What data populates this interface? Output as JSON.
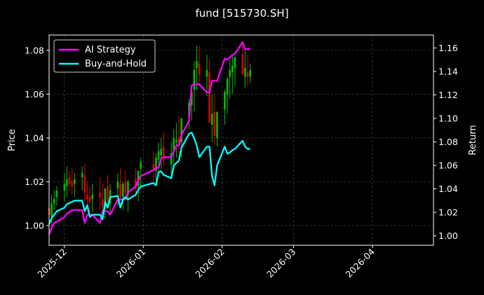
{
  "chart_data": {
    "type": "line",
    "title": "fund [515730.SH]",
    "ylabel_left": "Price",
    "ylabel_right": "Return",
    "grid": true,
    "legend_position": "top-left",
    "x_ticks": [
      "2025-12",
      "2026-01",
      "2026-02",
      "2026-03",
      "2026-04"
    ],
    "x_range": [
      "2025-11-25",
      "2026-04-25"
    ],
    "ylim_left": [
      0.991,
      1.087
    ],
    "ylim_right": [
      0.992,
      1.171
    ],
    "y_ticks_left": [
      "1.00",
      "1.02",
      "1.04",
      "1.06",
      "1.08"
    ],
    "y_ticks_right": [
      "1.00",
      "1.02",
      "1.04",
      "1.06",
      "1.08",
      "1.10",
      "1.12",
      "1.14",
      "1.16"
    ],
    "colors": {
      "ai": "#ff00ff",
      "bh": "#00ffff",
      "up": "#00c000",
      "down": "#e00000",
      "grid": "#555555",
      "bg": "#000000"
    },
    "series": [
      {
        "name": "AI Strategy",
        "axis": "right",
        "color": "#ff00ff",
        "x": [
          "2025-11-25",
          "2025-11-26",
          "2025-11-27",
          "2025-11-28",
          "2025-12-01",
          "2025-12-02",
          "2025-12-03",
          "2025-12-04",
          "2025-12-05",
          "2025-12-08",
          "2025-12-09",
          "2025-12-10",
          "2025-12-11",
          "2025-12-12",
          "2025-12-15",
          "2025-12-16",
          "2025-12-17",
          "2025-12-18",
          "2025-12-19",
          "2025-12-22",
          "2025-12-23",
          "2025-12-24",
          "2025-12-25",
          "2025-12-26",
          "2025-12-29",
          "2025-12-30",
          "2025-12-31",
          "2026-01-05",
          "2026-01-06",
          "2026-01-07",
          "2026-01-08",
          "2026-01-09",
          "2026-01-12",
          "2026-01-13",
          "2026-01-14",
          "2026-01-15",
          "2026-01-16",
          "2026-01-19",
          "2026-01-20",
          "2026-01-21",
          "2026-01-22",
          "2026-01-23",
          "2026-01-26",
          "2026-01-27",
          "2026-01-28",
          "2026-01-29",
          "2026-01-30",
          "2026-02-02",
          "2026-02-03",
          "2026-02-04",
          "2026-02-05",
          "2026-02-06",
          "2026-02-09",
          "2026-02-10",
          "2026-02-11",
          "2026-02-12"
        ],
        "values": [
          1.001,
          1.007,
          1.011,
          1.012,
          1.016,
          1.019,
          1.02,
          1.022,
          1.022,
          1.022,
          1.011,
          1.018,
          1.018,
          1.018,
          1.011,
          1.021,
          1.021,
          1.021,
          1.018,
          1.031,
          1.031,
          1.031,
          1.031,
          1.037,
          1.042,
          1.047,
          1.051,
          1.056,
          1.058,
          1.058,
          1.066,
          1.067,
          1.067,
          1.072,
          1.077,
          1.077,
          1.086,
          1.098,
          1.128,
          1.129,
          1.129,
          1.129,
          1.122,
          1.122,
          1.132,
          1.132,
          1.132,
          1.151,
          1.15,
          1.152,
          1.154,
          1.155,
          1.165,
          1.159,
          1.159,
          1.159
        ]
      },
      {
        "name": "Buy-and-Hold",
        "axis": "right",
        "color": "#00ffff",
        "x": [
          "2025-11-25",
          "2025-11-26",
          "2025-11-27",
          "2025-11-28",
          "2025-12-01",
          "2025-12-02",
          "2025-12-03",
          "2025-12-04",
          "2025-12-05",
          "2025-12-08",
          "2025-12-09",
          "2025-12-10",
          "2025-12-11",
          "2025-12-12",
          "2025-12-15",
          "2025-12-16",
          "2025-12-17",
          "2025-12-18",
          "2025-12-19",
          "2025-12-22",
          "2025-12-23",
          "2025-12-24",
          "2025-12-25",
          "2025-12-26",
          "2025-12-29",
          "2025-12-30",
          "2025-12-31",
          "2026-01-05",
          "2026-01-06",
          "2026-01-07",
          "2026-01-08",
          "2026-01-09",
          "2026-01-12",
          "2026-01-13",
          "2026-01-14",
          "2026-01-15",
          "2026-01-16",
          "2026-01-19",
          "2026-01-20",
          "2026-01-21",
          "2026-01-22",
          "2026-01-23",
          "2026-01-26",
          "2026-01-27",
          "2026-01-28",
          "2026-01-29",
          "2026-01-30",
          "2026-02-02",
          "2026-02-03",
          "2026-02-04",
          "2026-02-05",
          "2026-02-06",
          "2026-02-09",
          "2026-02-10",
          "2026-02-11",
          "2026-02-12"
        ],
        "values": [
          1.01,
          1.015,
          1.018,
          1.021,
          1.024,
          1.027,
          1.028,
          1.029,
          1.03,
          1.03,
          1.021,
          1.026,
          1.016,
          1.018,
          1.018,
          1.014,
          1.029,
          1.024,
          1.033,
          1.034,
          1.024,
          1.031,
          1.033,
          1.031,
          1.035,
          1.039,
          1.042,
          1.045,
          1.043,
          1.054,
          1.055,
          1.052,
          1.049,
          1.06,
          1.062,
          1.064,
          1.075,
          1.087,
          1.088,
          1.083,
          1.077,
          1.067,
          1.076,
          1.076,
          1.051,
          1.043,
          1.06,
          1.076,
          1.07,
          1.071,
          1.073,
          1.074,
          1.081,
          1.076,
          1.074,
          1.074
        ]
      }
    ],
    "candles": {
      "axis": "left",
      "x": [
        "2025-11-25",
        "2025-11-26",
        "2025-11-27",
        "2025-11-28",
        "2025-12-01",
        "2025-12-02",
        "2025-12-03",
        "2025-12-04",
        "2025-12-05",
        "2025-12-08",
        "2025-12-09",
        "2025-12-10",
        "2025-12-11",
        "2025-12-12",
        "2025-12-15",
        "2025-12-16",
        "2025-12-17",
        "2025-12-18",
        "2025-12-19",
        "2025-12-22",
        "2025-12-23",
        "2025-12-24",
        "2025-12-25",
        "2025-12-26",
        "2025-12-29",
        "2025-12-30",
        "2025-12-31",
        "2026-01-05",
        "2026-01-06",
        "2026-01-07",
        "2026-01-08",
        "2026-01-09",
        "2026-01-12",
        "2026-01-13",
        "2026-01-14",
        "2026-01-15",
        "2026-01-16",
        "2026-01-19",
        "2026-01-20",
        "2026-01-21",
        "2026-01-22",
        "2026-01-23",
        "2026-01-26",
        "2026-01-27",
        "2026-01-28",
        "2026-01-29",
        "2026-01-30",
        "2026-02-02",
        "2026-02-03",
        "2026-02-04",
        "2026-02-05",
        "2026-02-06",
        "2026-02-09",
        "2026-02-10",
        "2026-02-11",
        "2026-02-12"
      ],
      "open": [
        1.008,
        1.004,
        1.01,
        1.013,
        1.016,
        1.018,
        1.022,
        1.02,
        1.019,
        1.022,
        1.023,
        1.014,
        1.013,
        1.012,
        1.015,
        1.012,
        1.008,
        1.018,
        1.01,
        1.017,
        1.019,
        1.013,
        1.02,
        1.014,
        1.021,
        1.018,
        1.026,
        1.028,
        1.025,
        1.03,
        1.032,
        1.036,
        1.028,
        1.034,
        1.038,
        1.04,
        1.038,
        1.05,
        1.055,
        1.062,
        1.072,
        1.074,
        1.068,
        1.07,
        1.046,
        1.052,
        1.04,
        1.053,
        1.06,
        1.068,
        1.07,
        1.072,
        1.078,
        1.068,
        1.07,
        1.068
      ],
      "high": [
        1.012,
        1.014,
        1.016,
        1.018,
        1.024,
        1.027,
        1.025,
        1.026,
        1.024,
        1.027,
        1.028,
        1.02,
        1.018,
        1.019,
        1.022,
        1.019,
        1.017,
        1.023,
        1.019,
        1.024,
        1.026,
        1.02,
        1.025,
        1.021,
        1.026,
        1.025,
        1.031,
        1.034,
        1.033,
        1.038,
        1.04,
        1.043,
        1.038,
        1.044,
        1.047,
        1.05,
        1.048,
        1.058,
        1.063,
        1.075,
        1.082,
        1.082,
        1.078,
        1.076,
        1.06,
        1.06,
        1.05,
        1.062,
        1.068,
        1.076,
        1.078,
        1.077,
        1.083,
        1.08,
        1.078,
        1.074
      ],
      "low": [
        1.002,
        1.0,
        1.007,
        1.009,
        1.011,
        1.013,
        1.016,
        1.014,
        1.013,
        1.016,
        1.011,
        1.007,
        1.006,
        1.006,
        1.007,
        1.004,
        1.003,
        1.008,
        1.005,
        1.009,
        1.011,
        1.007,
        1.012,
        1.006,
        1.013,
        1.011,
        1.017,
        1.02,
        1.019,
        1.024,
        1.026,
        1.027,
        1.022,
        1.027,
        1.031,
        1.033,
        1.031,
        1.044,
        1.048,
        1.052,
        1.062,
        1.064,
        1.059,
        1.052,
        1.038,
        1.037,
        1.036,
        1.046,
        1.051,
        1.058,
        1.06,
        1.064,
        1.07,
        1.063,
        1.064,
        1.065
      ],
      "close": [
        1.005,
        1.01,
        1.012,
        1.016,
        1.019,
        1.021,
        1.019,
        1.018,
        1.021,
        1.024,
        1.015,
        1.012,
        1.011,
        1.014,
        1.013,
        1.009,
        1.017,
        1.011,
        1.016,
        1.02,
        1.013,
        1.019,
        1.015,
        1.02,
        1.017,
        1.025,
        1.029,
        1.026,
        1.031,
        1.034,
        1.035,
        1.03,
        1.033,
        1.04,
        1.039,
        1.037,
        1.049,
        1.056,
        1.061,
        1.071,
        1.075,
        1.069,
        1.071,
        1.047,
        1.051,
        1.041,
        1.052,
        1.061,
        1.067,
        1.071,
        1.073,
        1.077,
        1.069,
        1.072,
        1.068,
        1.071
      ]
    }
  }
}
